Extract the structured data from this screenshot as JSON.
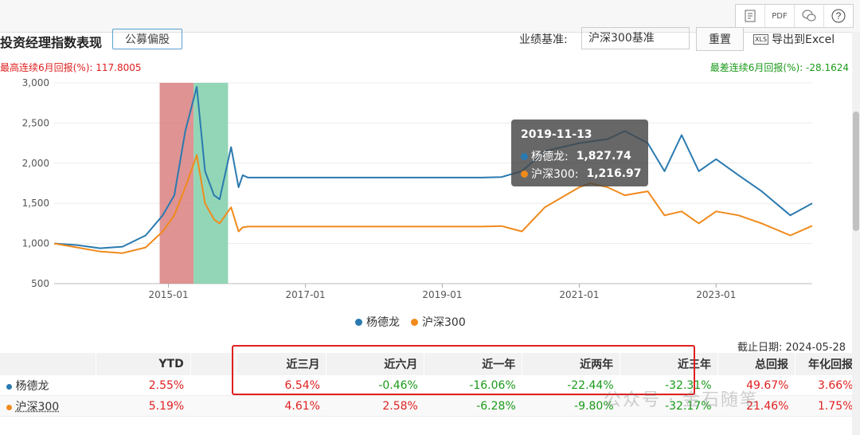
{
  "toolbar": {
    "icons": [
      "note-icon",
      "pdf-icon",
      "wechat-icon",
      "help-icon"
    ],
    "pdf_label": "PDF",
    "help_label": "?"
  },
  "header": {
    "title": "投资经理指数表现",
    "tag": "公募偏股",
    "benchmark_label": "业绩基准:",
    "benchmark_value": "沪深300基准",
    "reset_label": "重置",
    "export_label": "导出到Excel",
    "xls_tag": "XLS"
  },
  "stats": {
    "max_6m": "最高连续6月回报(%): 117.8005",
    "min_6m": "最差连续6月回报(%): -28.1624"
  },
  "colors": {
    "manager": "#2a7ab0",
    "benchmark": "#f08a1c",
    "max_band": "#d98080",
    "min_band": "#80cfaa"
  },
  "chart_data": {
    "type": "line",
    "ylim": [
      500,
      3000
    ],
    "y_ticks": [
      "500",
      "1,000",
      "1,500",
      "2,000",
      "2,500",
      "3,000"
    ],
    "x_ticks": [
      "2015-01",
      "2017-01",
      "2019-01",
      "2021-01",
      "2023-01"
    ],
    "x_range": [
      "2013-05-01",
      "2024-05-28"
    ],
    "bands": [
      {
        "from": "2014-11-15",
        "to": "2015-05-15"
      },
      {
        "from": "2015-05-15",
        "to": "2015-11-15"
      }
    ],
    "series": [
      {
        "name": "杨德龙",
        "points": [
          [
            "2013-05-01",
            1000
          ],
          [
            "2013-09-01",
            980
          ],
          [
            "2014-01-01",
            940
          ],
          [
            "2014-05-01",
            960
          ],
          [
            "2014-09-01",
            1100
          ],
          [
            "2014-12-01",
            1350
          ],
          [
            "2015-02-01",
            1600
          ],
          [
            "2015-04-01",
            2400
          ],
          [
            "2015-06-01",
            2950
          ],
          [
            "2015-07-15",
            1900
          ],
          [
            "2015-09-01",
            1600
          ],
          [
            "2015-10-01",
            1550
          ],
          [
            "2015-12-01",
            2200
          ],
          [
            "2016-01-10",
            1700
          ],
          [
            "2016-02-01",
            1850
          ],
          [
            "2016-03-01",
            1820
          ],
          [
            "2018-11-01",
            1820
          ],
          [
            "2019-08-01",
            1820
          ],
          [
            "2019-11-13",
            1827.74
          ],
          [
            "2020-03-01",
            1900
          ],
          [
            "2020-07-01",
            2150
          ],
          [
            "2021-01-01",
            2250
          ],
          [
            "2021-06-01",
            2300
          ],
          [
            "2021-09-01",
            2400
          ],
          [
            "2022-01-01",
            2250
          ],
          [
            "2022-04-01",
            1900
          ],
          [
            "2022-07-01",
            2350
          ],
          [
            "2022-10-01",
            1900
          ],
          [
            "2023-01-01",
            2050
          ],
          [
            "2023-05-01",
            1850
          ],
          [
            "2023-09-01",
            1650
          ],
          [
            "2024-02-01",
            1350
          ],
          [
            "2024-05-28",
            1500
          ]
        ]
      },
      {
        "name": "沪深300",
        "points": [
          [
            "2013-05-01",
            1000
          ],
          [
            "2013-09-01",
            950
          ],
          [
            "2014-01-01",
            900
          ],
          [
            "2014-05-01",
            880
          ],
          [
            "2014-09-01",
            950
          ],
          [
            "2014-12-01",
            1150
          ],
          [
            "2015-02-01",
            1350
          ],
          [
            "2015-04-01",
            1700
          ],
          [
            "2015-06-01",
            2100
          ],
          [
            "2015-07-15",
            1500
          ],
          [
            "2015-09-01",
            1300
          ],
          [
            "2015-10-01",
            1250
          ],
          [
            "2015-12-01",
            1450
          ],
          [
            "2016-01-10",
            1150
          ],
          [
            "2016-02-01",
            1200
          ],
          [
            "2016-03-01",
            1210
          ],
          [
            "2018-11-01",
            1210
          ],
          [
            "2019-08-01",
            1210
          ],
          [
            "2019-11-13",
            1216.97
          ],
          [
            "2020-03-01",
            1150
          ],
          [
            "2020-07-01",
            1450
          ],
          [
            "2021-01-01",
            1700
          ],
          [
            "2021-03-01",
            1750
          ],
          [
            "2021-06-01",
            1700
          ],
          [
            "2021-09-01",
            1600
          ],
          [
            "2022-01-01",
            1650
          ],
          [
            "2022-04-01",
            1350
          ],
          [
            "2022-07-01",
            1400
          ],
          [
            "2022-10-01",
            1250
          ],
          [
            "2023-01-01",
            1400
          ],
          [
            "2023-05-01",
            1350
          ],
          [
            "2023-09-01",
            1250
          ],
          [
            "2024-02-01",
            1100
          ],
          [
            "2024-05-28",
            1220
          ]
        ]
      }
    ]
  },
  "legend": [
    {
      "name": "杨德龙"
    },
    {
      "name": "沪深300"
    }
  ],
  "tooltip": {
    "date": "2019-11-13",
    "rows": [
      {
        "label": "杨德龙:",
        "value": "1,827.74"
      },
      {
        "label": "沪深300:",
        "value": "1,216.97"
      }
    ]
  },
  "as_of": "截止日期: 2024-05-28",
  "table": {
    "headers": [
      "",
      "YTD",
      "",
      "近三月",
      "近六月",
      "近一年",
      "近两年",
      "近三年",
      "总回报",
      "年化回报"
    ],
    "rows": [
      {
        "name": "杨德龙",
        "cells": [
          "2.55%",
          "",
          "6.54%",
          "-0.46%",
          "-16.06%",
          "-22.44%",
          "-32.31%",
          "49.67%",
          "3.66%"
        ]
      },
      {
        "name": "沪深300",
        "cells": [
          "5.19%",
          "",
          "4.61%",
          "2.58%",
          "-6.28%",
          "-9.80%",
          "-32.17%",
          "21.46%",
          "1.75%"
        ]
      }
    ]
  },
  "watermark": "公众号 · 金石随笔"
}
